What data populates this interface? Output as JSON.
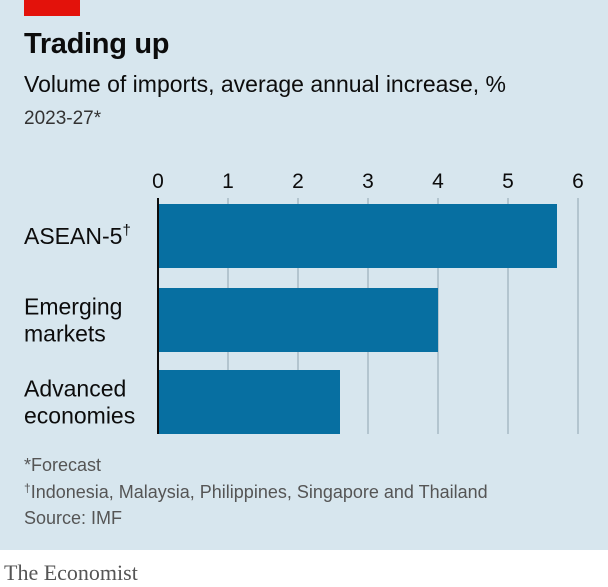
{
  "header": {
    "title": "Trading up",
    "subtitle": "Volume of imports, average annual increase, %",
    "period": "2023-27*"
  },
  "chart_data": {
    "type": "bar",
    "orientation": "horizontal",
    "categories": [
      {
        "lines": [
          "ASEAN-5"
        ],
        "superscript": "†"
      },
      {
        "lines": [
          "Emerging",
          "markets"
        ],
        "superscript": ""
      },
      {
        "lines": [
          "Advanced",
          "economies"
        ],
        "superscript": ""
      }
    ],
    "values": [
      5.7,
      4.0,
      2.6
    ],
    "xlim": [
      0,
      6
    ],
    "xticks": [
      "0",
      "1",
      "2",
      "3",
      "4",
      "5",
      "6"
    ],
    "grid": true,
    "axis_position": "top",
    "colors": {
      "bar": "#076fa1",
      "grid": "#b3c5cf",
      "axis": "#0c0c0c"
    }
  },
  "notes": {
    "forecast_mark": "*",
    "forecast_text": "Forecast",
    "countries_mark": "†",
    "countries_text": "Indonesia, Malaysia, Philippines, Singapore and Thailand",
    "source": "Source: IMF"
  },
  "footer": {
    "brand": "The Economist"
  },
  "colors": {
    "panel": "#d7e6ee",
    "accent": "#e3120b"
  }
}
